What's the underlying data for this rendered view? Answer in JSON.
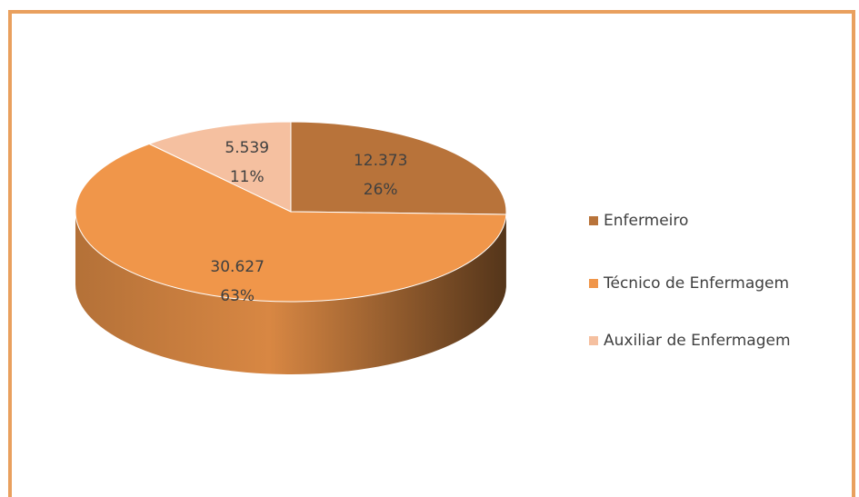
{
  "chart_data": {
    "type": "pie",
    "categories": [
      "Enfermeiro",
      "Técnico de Enfermagem",
      "Auxiliar de Enfermagem"
    ],
    "values": [
      12373,
      30627,
      5539
    ],
    "value_labels": [
      "12.373",
      "30.627",
      "5.539"
    ],
    "percent_labels": [
      "26%",
      "63%",
      "11%"
    ],
    "colors": [
      "#b8733a",
      "#f0964a",
      "#f5c0a0"
    ],
    "legend": "right"
  }
}
